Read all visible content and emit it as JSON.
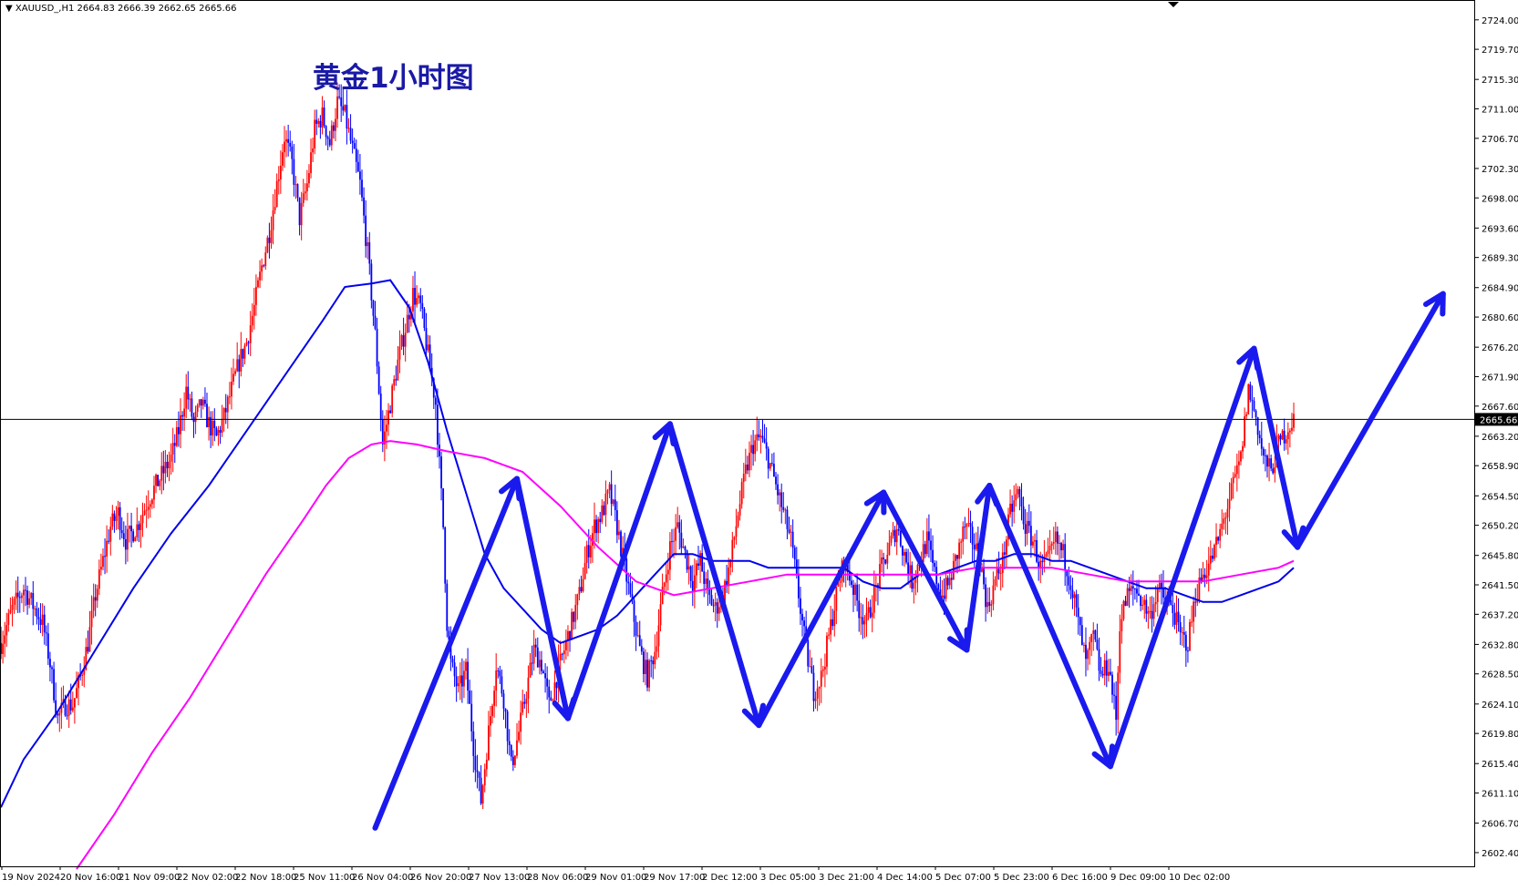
{
  "symbol": {
    "marker": "▼",
    "text": "XAUUSD_,H1  2664.83 2666.39 2662.65 2665.66"
  },
  "colors": {
    "bull": "#ff0000",
    "bear": "#0000ff",
    "ma_fast": "#0000ee",
    "ma_slow": "#ff00ff",
    "price_line": "#000000",
    "annotation": "#1a1aee",
    "title": "#1a1aa6",
    "current_tag_bg": "#000000",
    "current_tag_text": "#ffffff"
  },
  "chart_data": {
    "type": "candlestick",
    "title": "黄金1小时图",
    "current_price": 2665.66,
    "current_price_label": "2665.66",
    "ylim": [
      2600.4,
      2726.1
    ],
    "y_ticks": [
      "2724.00",
      "2719.70",
      "2715.30",
      "2711.00",
      "2706.70",
      "2702.30",
      "2698.00",
      "2693.60",
      "2689.30",
      "2684.90",
      "2680.60",
      "2676.20",
      "2671.90",
      "2667.60",
      "2663.20",
      "2658.90",
      "2654.50",
      "2650.20",
      "2645.80",
      "2641.50",
      "2637.20",
      "2632.80",
      "2628.50",
      "2624.10",
      "2619.80",
      "2615.40",
      "2611.10",
      "2606.70",
      "2602.40"
    ],
    "x_ticks": [
      "19 Nov 2024",
      "20 Nov 16:00",
      "21 Nov 09:00",
      "22 Nov 02:00",
      "22 Nov 18:00",
      "25 Nov 11:00",
      "26 Nov 04:00",
      "26 Nov 20:00",
      "27 Nov 13:00",
      "28 Nov 06:00",
      "29 Nov 01:00",
      "29 Nov 17:00",
      "2 Dec 12:00",
      "3 Dec 05:00",
      "3 Dec 21:00",
      "4 Dec 14:00",
      "5 Dec 07:00",
      "5 Dec 23:00",
      "6 Dec 16:00",
      "9 Dec 09:00",
      "10 Dec 02:00"
    ],
    "price_path": [
      [
        0,
        2633
      ],
      [
        6,
        2638
      ],
      [
        12,
        2641
      ],
      [
        18,
        2638
      ],
      [
        22,
        2636
      ],
      [
        26,
        2630
      ],
      [
        30,
        2622
      ],
      [
        34,
        2624
      ],
      [
        38,
        2624
      ],
      [
        42,
        2628
      ],
      [
        46,
        2633
      ],
      [
        50,
        2640
      ],
      [
        54,
        2645
      ],
      [
        58,
        2650
      ],
      [
        62,
        2652
      ],
      [
        66,
        2648
      ],
      [
        72,
        2650
      ],
      [
        78,
        2654
      ],
      [
        84,
        2657
      ],
      [
        90,
        2660
      ],
      [
        94,
        2664
      ],
      [
        98,
        2670
      ],
      [
        102,
        2665
      ],
      [
        106,
        2668
      ],
      [
        110,
        2665
      ],
      [
        114,
        2663
      ],
      [
        118,
        2666
      ],
      [
        122,
        2670
      ],
      [
        126,
        2674
      ],
      [
        130,
        2677
      ],
      [
        134,
        2682
      ],
      [
        138,
        2688
      ],
      [
        142,
        2693
      ],
      [
        146,
        2700
      ],
      [
        150,
        2707
      ],
      [
        154,
        2703
      ],
      [
        158,
        2695
      ],
      [
        162,
        2700
      ],
      [
        166,
        2708
      ],
      [
        170,
        2710
      ],
      [
        174,
        2706
      ],
      [
        178,
        2712
      ],
      [
        182,
        2710
      ],
      [
        186,
        2705
      ],
      [
        190,
        2700
      ],
      [
        194,
        2690
      ],
      [
        198,
        2678
      ],
      [
        202,
        2662
      ],
      [
        206,
        2668
      ],
      [
        210,
        2674
      ],
      [
        214,
        2679
      ],
      [
        218,
        2684
      ],
      [
        222,
        2682
      ],
      [
        226,
        2675
      ],
      [
        230,
        2668
      ],
      [
        234,
        2650
      ],
      [
        236,
        2636
      ],
      [
        238,
        2630
      ],
      [
        242,
        2626
      ],
      [
        246,
        2629
      ],
      [
        250,
        2618
      ],
      [
        254,
        2610
      ],
      [
        258,
        2620
      ],
      [
        262,
        2630
      ],
      [
        266,
        2625
      ],
      [
        270,
        2615
      ],
      [
        274,
        2620
      ],
      [
        278,
        2626
      ],
      [
        282,
        2632
      ],
      [
        286,
        2630
      ],
      [
        290,
        2624
      ],
      [
        294,
        2628
      ],
      [
        298,
        2632
      ],
      [
        302,
        2636
      ],
      [
        306,
        2640
      ],
      [
        310,
        2646
      ],
      [
        314,
        2650
      ],
      [
        318,
        2652
      ],
      [
        322,
        2655
      ],
      [
        326,
        2650
      ],
      [
        330,
        2644
      ],
      [
        334,
        2638
      ],
      [
        338,
        2632
      ],
      [
        342,
        2628
      ],
      [
        346,
        2632
      ],
      [
        350,
        2640
      ],
      [
        354,
        2647
      ],
      [
        358,
        2650
      ],
      [
        362,
        2646
      ],
      [
        366,
        2642
      ],
      [
        370,
        2645
      ],
      [
        374,
        2640
      ],
      [
        378,
        2638
      ],
      [
        382,
        2640
      ],
      [
        386,
        2645
      ],
      [
        390,
        2652
      ],
      [
        394,
        2658
      ],
      [
        398,
        2662
      ],
      [
        402,
        2663
      ],
      [
        406,
        2660
      ],
      [
        410,
        2656
      ],
      [
        414,
        2652
      ],
      [
        418,
        2648
      ],
      [
        422,
        2640
      ],
      [
        426,
        2632
      ],
      [
        430,
        2626
      ],
      [
        434,
        2628
      ],
      [
        438,
        2634
      ],
      [
        442,
        2640
      ],
      [
        446,
        2645
      ],
      [
        450,
        2642
      ],
      [
        454,
        2638
      ],
      [
        458,
        2636
      ],
      [
        462,
        2640
      ],
      [
        466,
        2644
      ],
      [
        470,
        2647
      ],
      [
        474,
        2650
      ],
      [
        478,
        2646
      ],
      [
        482,
        2642
      ],
      [
        486,
        2645
      ],
      [
        490,
        2648
      ],
      [
        494,
        2643
      ],
      [
        498,
        2640
      ],
      [
        502,
        2642
      ],
      [
        506,
        2646
      ],
      [
        510,
        2650
      ],
      [
        514,
        2648
      ],
      [
        518,
        2645
      ],
      [
        522,
        2638
      ],
      [
        526,
        2642
      ],
      [
        530,
        2645
      ],
      [
        534,
        2652
      ],
      [
        538,
        2655
      ],
      [
        542,
        2650
      ],
      [
        546,
        2648
      ],
      [
        550,
        2644
      ],
      [
        554,
        2645
      ],
      [
        558,
        2648
      ],
      [
        562,
        2646
      ],
      [
        566,
        2642
      ],
      [
        570,
        2636
      ],
      [
        574,
        2630
      ],
      [
        578,
        2634
      ],
      [
        582,
        2628
      ],
      [
        586,
        2630
      ],
      [
        590,
        2622
      ],
      [
        592,
        2636
      ],
      [
        596,
        2640
      ],
      [
        600,
        2641
      ],
      [
        604,
        2639
      ],
      [
        608,
        2637
      ],
      [
        612,
        2641
      ],
      [
        616,
        2639
      ],
      [
        620,
        2638
      ],
      [
        624,
        2634
      ],
      [
        628,
        2633
      ],
      [
        632,
        2640
      ],
      [
        636,
        2643
      ],
      [
        640,
        2645
      ],
      [
        644,
        2648
      ],
      [
        648,
        2652
      ],
      [
        652,
        2656
      ],
      [
        656,
        2660
      ],
      [
        660,
        2670
      ],
      [
        664,
        2666
      ],
      [
        668,
        2660
      ],
      [
        672,
        2658
      ],
      [
        676,
        2662
      ],
      [
        680,
        2664
      ],
      [
        684,
        2665.66
      ]
    ],
    "series": [
      {
        "name": "",
        "color": "#0000ee",
        "points": [
          [
            0,
            2609
          ],
          [
            12,
            2616
          ],
          [
            30,
            2623
          ],
          [
            50,
            2632
          ],
          [
            70,
            2641
          ],
          [
            90,
            2649
          ],
          [
            110,
            2656
          ],
          [
            130,
            2664
          ],
          [
            150,
            2672
          ],
          [
            170,
            2680
          ],
          [
            182,
            2685
          ],
          [
            196,
            2685.5
          ],
          [
            206,
            2686
          ],
          [
            216,
            2682
          ],
          [
            226,
            2674
          ],
          [
            236,
            2664
          ],
          [
            246,
            2655
          ],
          [
            256,
            2646
          ],
          [
            266,
            2641
          ],
          [
            276,
            2638
          ],
          [
            286,
            2635
          ],
          [
            296,
            2633
          ],
          [
            306,
            2634
          ],
          [
            316,
            2635
          ],
          [
            326,
            2637
          ],
          [
            336,
            2640
          ],
          [
            346,
            2643
          ],
          [
            356,
            2646
          ],
          [
            366,
            2646
          ],
          [
            376,
            2645
          ],
          [
            386,
            2645
          ],
          [
            396,
            2645
          ],
          [
            406,
            2644
          ],
          [
            416,
            2644
          ],
          [
            426,
            2644
          ],
          [
            436,
            2644
          ],
          [
            446,
            2644
          ],
          [
            456,
            2642
          ],
          [
            466,
            2641
          ],
          [
            476,
            2641
          ],
          [
            486,
            2643
          ],
          [
            496,
            2643
          ],
          [
            506,
            2644
          ],
          [
            516,
            2645
          ],
          [
            526,
            2645
          ],
          [
            536,
            2646
          ],
          [
            546,
            2646
          ],
          [
            556,
            2645
          ],
          [
            566,
            2645
          ],
          [
            576,
            2644
          ],
          [
            586,
            2643
          ],
          [
            596,
            2642
          ],
          [
            606,
            2641
          ],
          [
            616,
            2641
          ],
          [
            626,
            2640
          ],
          [
            636,
            2639
          ],
          [
            646,
            2639
          ],
          [
            656,
            2640
          ],
          [
            666,
            2641
          ],
          [
            676,
            2642
          ],
          [
            684,
            2644
          ]
        ]
      },
      {
        "name": "",
        "color": "#ff00ff",
        "points": [
          [
            40,
            2600
          ],
          [
            60,
            2608
          ],
          [
            80,
            2617
          ],
          [
            100,
            2625
          ],
          [
            120,
            2634
          ],
          [
            140,
            2643
          ],
          [
            160,
            2651
          ],
          [
            172,
            2656
          ],
          [
            184,
            2660
          ],
          [
            196,
            2662
          ],
          [
            206,
            2662.5
          ],
          [
            220,
            2662
          ],
          [
            236,
            2661
          ],
          [
            256,
            2660
          ],
          [
            276,
            2658
          ],
          [
            296,
            2653
          ],
          [
            316,
            2647
          ],
          [
            336,
            2642
          ],
          [
            356,
            2640
          ],
          [
            376,
            2641
          ],
          [
            396,
            2642
          ],
          [
            416,
            2643
          ],
          [
            436,
            2643
          ],
          [
            456,
            2643
          ],
          [
            476,
            2643
          ],
          [
            496,
            2643
          ],
          [
            516,
            2644
          ],
          [
            536,
            2644
          ],
          [
            556,
            2644
          ],
          [
            576,
            2643
          ],
          [
            596,
            2642
          ],
          [
            616,
            2642
          ],
          [
            636,
            2642
          ],
          [
            656,
            2643
          ],
          [
            676,
            2644
          ],
          [
            684,
            2645
          ]
        ]
      }
    ],
    "annotation_path": [
      [
        198,
        2606
      ],
      [
        273,
        2657
      ],
      [
        300,
        2622
      ],
      [
        354,
        2665
      ],
      [
        401,
        2621
      ],
      [
        467,
        2655
      ],
      [
        511,
        2632
      ],
      [
        523,
        2656
      ],
      [
        587,
        2615
      ],
      [
        663,
        2676
      ],
      [
        686,
        2647
      ],
      [
        763,
        2684
      ]
    ],
    "annotation_arrowheads": [
      {
        "at": 1,
        "dir": "up"
      },
      {
        "at": 2,
        "dir": "down"
      },
      {
        "at": 3,
        "dir": "up"
      },
      {
        "at": 4,
        "dir": "down"
      },
      {
        "at": 5,
        "dir": "up"
      },
      {
        "at": 6,
        "dir": "down"
      },
      {
        "at": 7,
        "dir": "up"
      },
      {
        "at": 8,
        "dir": "down"
      },
      {
        "at": 9,
        "dir": "up"
      },
      {
        "at": 10,
        "dir": "down"
      },
      {
        "at": 11,
        "dir": "up"
      }
    ]
  }
}
